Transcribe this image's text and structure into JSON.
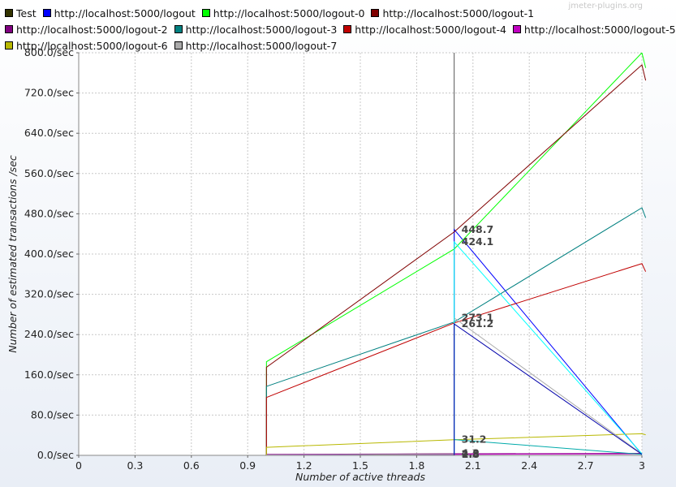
{
  "watermark": "jmeter-plugins.org",
  "chart_data": {
    "type": "line",
    "xlabel": "Number of active threads",
    "ylabel": "Number of estimated transactions /sec",
    "xlim": [
      0,
      3
    ],
    "ylim": [
      0,
      800
    ],
    "x_ticks": [
      "0",
      "0.3",
      "0.6",
      "0.9",
      "1.2",
      "1.5",
      "1.8",
      "2.1",
      "2.4",
      "2.7",
      "3"
    ],
    "x_tick_values": [
      0,
      0.3,
      0.6,
      0.9,
      1.2,
      1.5,
      1.8,
      2.1,
      2.4,
      2.7,
      3
    ],
    "y_ticks": [
      "0.0/sec",
      "80.0/sec",
      "160.0/sec",
      "240.0/sec",
      "320.0/sec",
      "400.0/sec",
      "480.0/sec",
      "560.0/sec",
      "640.0/sec",
      "720.0/sec",
      "800.0/sec"
    ],
    "y_tick_values": [
      0,
      80,
      160,
      240,
      320,
      400,
      480,
      560,
      640,
      720,
      800
    ],
    "grid": true,
    "legend_position": "top",
    "cursor_x": 2,
    "series": [
      {
        "name": "Test",
        "color": "#333300",
        "x": [
          1,
          2,
          3
        ],
        "y": [
          1,
          3,
          3
        ]
      },
      {
        "name": "http://localhost:5000/logout",
        "color": "#0000ff",
        "x": [
          1,
          1,
          2,
          2,
          3
        ],
        "y": [
          0,
          1,
          2,
          448.7,
          2
        ]
      },
      {
        "name": "http://localhost:5000/logout-0",
        "color": "#00ff00",
        "x": [
          1,
          1,
          2,
          3,
          3.02
        ],
        "y": [
          0,
          186,
          410,
          800,
          770
        ]
      },
      {
        "name": "http://localhost:5000/logout-1",
        "color": "#800000",
        "x": [
          1,
          1,
          2,
          3,
          3.02
        ],
        "y": [
          0,
          175,
          444,
          776,
          745
        ]
      },
      {
        "name": "http://localhost:5000/logout-2",
        "color": "#800080",
        "x": [
          1,
          2,
          3
        ],
        "y": [
          2,
          3,
          4
        ]
      },
      {
        "name": "http://localhost:5000/logout-3",
        "color": "#008080",
        "x": [
          1,
          1,
          2,
          3,
          3.02
        ],
        "y": [
          0,
          137,
          265,
          492,
          472
        ]
      },
      {
        "name": "http://localhost:5000/logout-4",
        "color": "#c00000",
        "x": [
          1,
          1,
          2,
          3,
          3.02
        ],
        "y": [
          0,
          115,
          263,
          381,
          365
        ]
      },
      {
        "name": "http://localhost:5000/logout-5",
        "color": "#c000c0",
        "x": [
          1,
          2,
          3
        ],
        "y": [
          1,
          2,
          3
        ]
      },
      {
        "name": "http://localhost:5000/logout-6",
        "color": "#b8b800",
        "x": [
          1,
          1,
          2,
          3,
          3.02
        ],
        "y": [
          0,
          16,
          31,
          43,
          41
        ]
      },
      {
        "name": "http://localhost:5000/logout-7",
        "color": "#aaaaaa",
        "x": [
          1,
          2,
          2,
          3
        ],
        "y": [
          1,
          2,
          273.1,
          3
        ]
      },
      {
        "name": "",
        "color": "#00ffff",
        "x": [
          2,
          2,
          3
        ],
        "y": [
          2,
          424.1,
          3
        ]
      },
      {
        "name": "",
        "color": "#00aaaa",
        "x": [
          2,
          3
        ],
        "y": [
          31.2,
          2
        ]
      },
      {
        "name": "",
        "color": "#0000aa",
        "x": [
          2,
          2,
          3
        ],
        "y": [
          1,
          261.2,
          2
        ]
      }
    ],
    "annotations": [
      {
        "text": "448.7",
        "x": 2,
        "y": 448.7
      },
      {
        "text": "424.1",
        "x": 2,
        "y": 424.1
      },
      {
        "text": "273.1",
        "x": 2,
        "y": 273.1
      },
      {
        "text": "261.2",
        "x": 2,
        "y": 261.2
      },
      {
        "text": "31.2",
        "x": 2,
        "y": 31.2
      },
      {
        "text": "4.3",
        "x": 2,
        "y": 4.3
      },
      {
        "text": "2.8",
        "x": 2,
        "y": 2.8
      },
      {
        "text": "1.8",
        "x": 2,
        "y": 1.8
      }
    ]
  }
}
